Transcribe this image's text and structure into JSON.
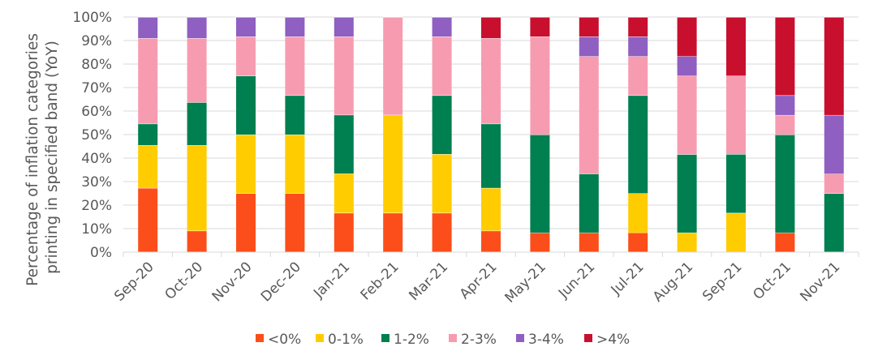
{
  "chart_data": {
    "type": "bar",
    "stacked": true,
    "title": "",
    "xlabel": "",
    "ylabel_lines": [
      "Percentage of inflation categories",
      "printing in specified band (YoY)"
    ],
    "yticks": [
      "0%",
      "10%",
      "20%",
      "30%",
      "40%",
      "50%",
      "60%",
      "70%",
      "80%",
      "90%",
      "100%"
    ],
    "ylim": [
      0,
      100
    ],
    "grid": true,
    "legend_position": "bottom",
    "categories": [
      "Sep-20",
      "Oct-20",
      "Nov-20",
      "Dec-20",
      "Jan-21",
      "Feb-21",
      "Mar-21",
      "Apr-21",
      "May-21",
      "Jun-21",
      "Jul-21",
      "Aug-21",
      "Sep-21",
      "Oct-21",
      "Nov-21"
    ],
    "series": [
      {
        "name": "<0%",
        "color": "#fc4e1a",
        "values": [
          27.3,
          9.1,
          25,
          25,
          16.7,
          16.7,
          16.7,
          9.1,
          8.3,
          8.3,
          8.3,
          0,
          0,
          8.3,
          0
        ]
      },
      {
        "name": "0-1%",
        "color": "#ffcc00",
        "values": [
          18.2,
          36.4,
          25,
          25,
          16.7,
          41.7,
          25,
          18.2,
          0,
          0,
          16.7,
          8.3,
          16.7,
          0,
          0
        ]
      },
      {
        "name": "1-2%",
        "color": "#007f50",
        "values": [
          9.1,
          18.2,
          25,
          16.7,
          25,
          0,
          25,
          27.3,
          41.7,
          25,
          41.7,
          33.3,
          25,
          41.7,
          25
        ]
      },
      {
        "name": "2-3%",
        "color": "#f79cb0",
        "values": [
          36.4,
          27.3,
          16.7,
          25,
          33.3,
          41.6,
          25,
          36.4,
          41.7,
          50,
          16.6,
          33.4,
          33.3,
          8.3,
          8.3
        ]
      },
      {
        "name": "3-4%",
        "color": "#8f5fc1",
        "values": [
          9,
          9,
          8.3,
          8.3,
          8.3,
          0,
          8.3,
          0,
          0,
          8.4,
          8.4,
          8.3,
          0,
          8.4,
          25
        ]
      },
      {
        "name": ">4%",
        "color": "#c8102e",
        "values": [
          0,
          0,
          0,
          0,
          0,
          0,
          0,
          9,
          8.3,
          8.3,
          8.3,
          16.7,
          25,
          33.3,
          41.7
        ]
      }
    ]
  }
}
